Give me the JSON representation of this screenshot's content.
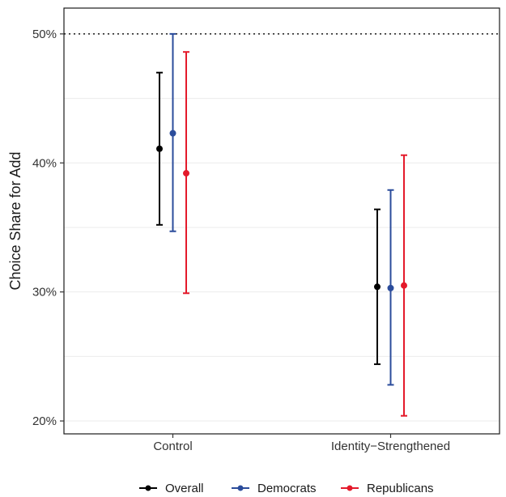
{
  "chart_data": {
    "type": "scatter",
    "subtype": "point-range",
    "ylabel": "Choice Share for Add",
    "xlabel": "",
    "ylim": [
      0.19,
      0.52
    ],
    "y_ticks": [
      0.2,
      0.3,
      0.4,
      0.5
    ],
    "y_tick_labels": [
      "20%",
      "30%",
      "40%",
      "50%"
    ],
    "reference_line": {
      "y": 0.5,
      "style": "dotted"
    },
    "grid": true,
    "legend_position": "bottom",
    "categories": [
      "Control",
      "Identity−Strengthened"
    ],
    "series": [
      {
        "name": "Overall",
        "color": "#000000",
        "values": [
          0.411,
          0.304
        ],
        "lower": [
          0.352,
          0.244
        ],
        "upper": [
          0.47,
          0.364
        ]
      },
      {
        "name": "Democrats",
        "color": "#2b4c9b",
        "values": [
          0.423,
          0.303
        ],
        "lower": [
          0.347,
          0.228
        ],
        "upper": [
          0.5,
          0.379
        ]
      },
      {
        "name": "Republicans",
        "color": "#e41a2b",
        "values": [
          0.392,
          0.305
        ],
        "lower": [
          0.299,
          0.204
        ],
        "upper": [
          0.486,
          0.406
        ]
      }
    ]
  }
}
